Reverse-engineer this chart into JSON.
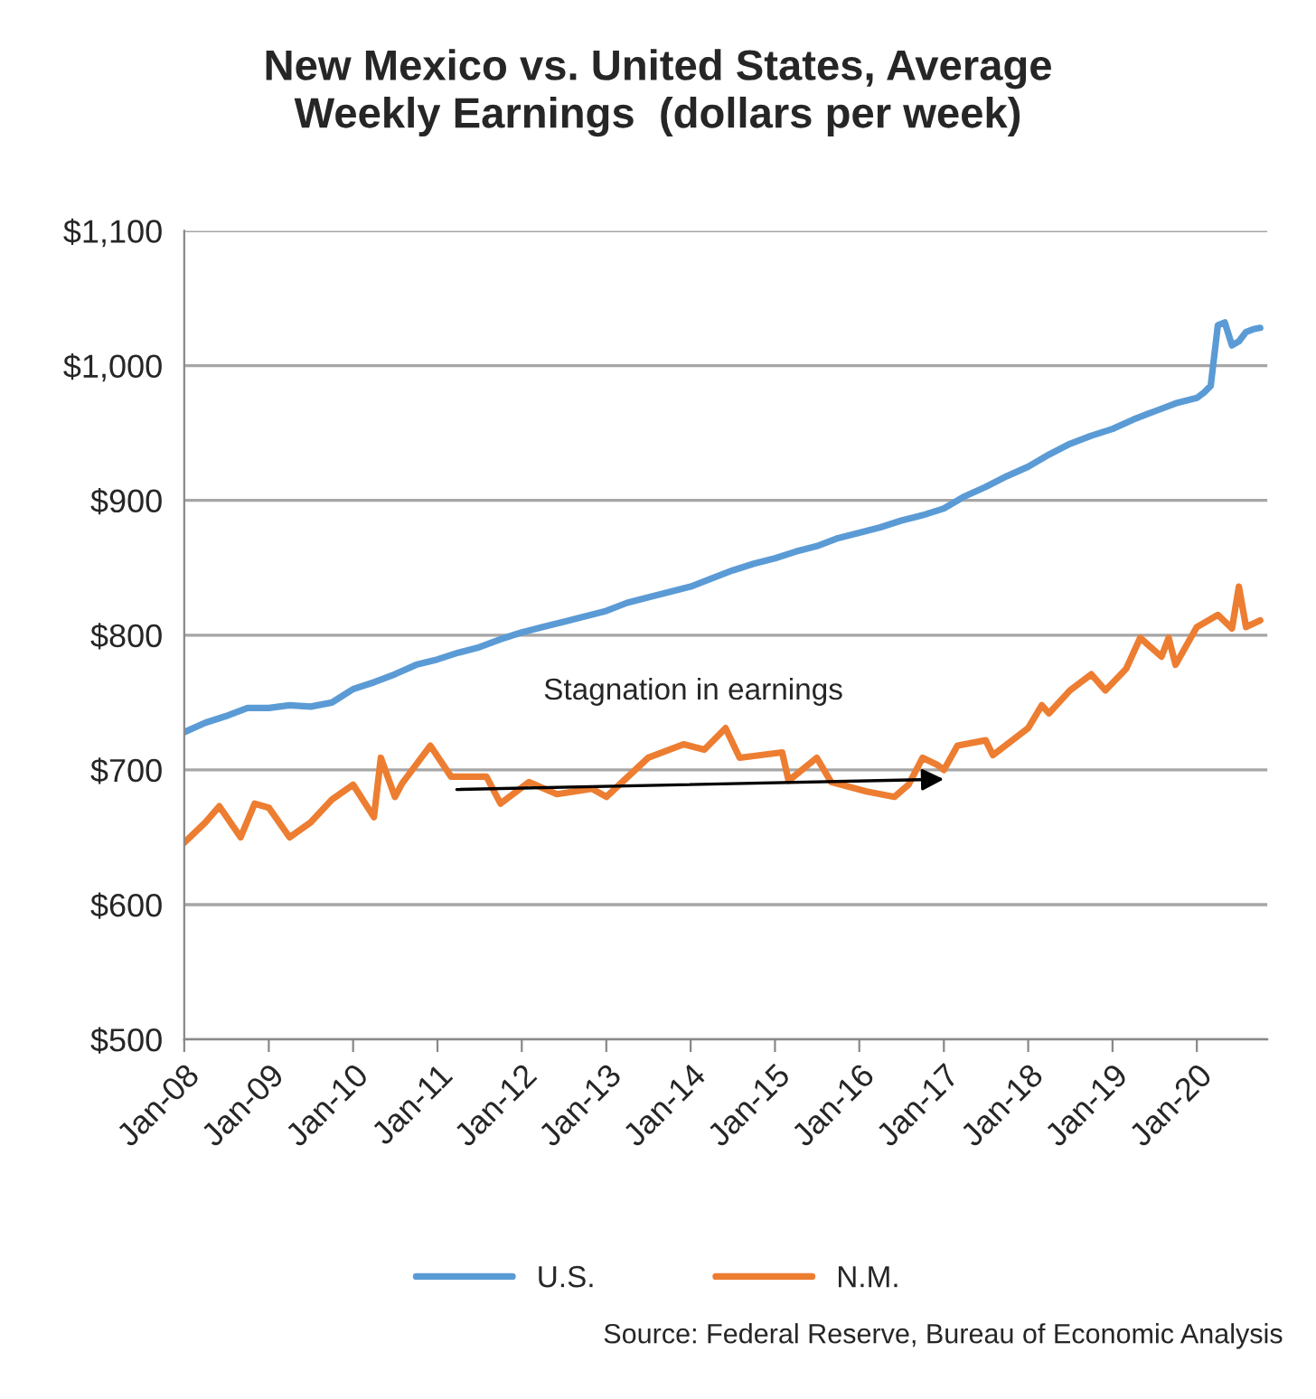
{
  "chart_data": {
    "type": "line",
    "title": "New Mexico vs. United States, Average\nWeekly Earnings  (dollars per week)",
    "series": [
      {
        "name": "U.S.",
        "color": "#5b9bd5",
        "x": [
          "2008-01",
          "2008-04",
          "2008-07",
          "2008-10",
          "2009-01",
          "2009-04",
          "2009-07",
          "2009-10",
          "2010-01",
          "2010-04",
          "2010-07",
          "2010-10",
          "2011-01",
          "2011-04",
          "2011-07",
          "2011-10",
          "2012-01",
          "2012-04",
          "2012-07",
          "2012-10",
          "2013-01",
          "2013-04",
          "2013-07",
          "2013-10",
          "2014-01",
          "2014-04",
          "2014-07",
          "2014-10",
          "2015-01",
          "2015-04",
          "2015-07",
          "2015-10",
          "2016-01",
          "2016-04",
          "2016-07",
          "2016-10",
          "2017-01",
          "2017-04",
          "2017-07",
          "2017-10",
          "2018-01",
          "2018-04",
          "2018-07",
          "2018-10",
          "2019-01",
          "2019-04",
          "2019-07",
          "2019-10",
          "2020-01",
          "2020-02",
          "2020-03",
          "2020-04",
          "2020-05",
          "2020-06",
          "2020-07",
          "2020-08",
          "2020-09",
          "2020-10"
        ],
        "values": [
          728,
          735,
          740,
          746,
          746,
          748,
          747,
          750,
          760,
          765,
          771,
          778,
          782,
          787,
          791,
          797,
          802,
          806,
          810,
          814,
          818,
          824,
          828,
          832,
          836,
          842,
          848,
          853,
          857,
          862,
          866,
          872,
          876,
          880,
          885,
          889,
          894,
          903,
          910,
          918,
          925,
          934,
          942,
          948,
          953,
          960,
          966,
          972,
          976,
          980,
          985,
          1030,
          1032,
          1015,
          1018,
          1025,
          1027,
          1028
        ]
      },
      {
        "name": "N.M.",
        "color": "#ed7d31",
        "x": [
          "2008-01",
          "2008-04",
          "2008-06",
          "2008-09",
          "2008-11",
          "2009-01",
          "2009-04",
          "2009-07",
          "2009-10",
          "2010-01",
          "2010-04",
          "2010-05",
          "2010-07",
          "2010-08",
          "2010-12",
          "2011-03",
          "2011-08",
          "2011-10",
          "2012-02",
          "2012-06",
          "2012-11",
          "2013-01",
          "2013-07",
          "2013-12",
          "2014-03",
          "2014-06",
          "2014-08",
          "2015-02",
          "2015-03",
          "2015-07",
          "2015-09",
          "2016-02",
          "2016-06",
          "2016-08",
          "2016-10",
          "2016-12",
          "2017-01",
          "2017-03",
          "2017-07",
          "2017-08",
          "2018-01",
          "2018-03",
          "2018-04",
          "2018-07",
          "2018-10",
          "2018-12",
          "2019-03",
          "2019-05",
          "2019-08",
          "2019-09",
          "2019-10",
          "2020-01",
          "2020-04",
          "2020-06",
          "2020-07",
          "2020-08",
          "2020-10"
        ],
        "values": [
          646,
          661,
          673,
          650,
          675,
          672,
          650,
          661,
          678,
          689,
          665,
          709,
          680,
          690,
          718,
          695,
          695,
          675,
          691,
          682,
          686,
          680,
          709,
          719,
          715,
          731,
          709,
          713,
          692,
          709,
          691,
          684,
          680,
          689,
          709,
          704,
          700,
          718,
          722,
          711,
          731,
          748,
          742,
          759,
          771,
          759,
          775,
          798,
          784,
          798,
          778,
          806,
          815,
          805,
          836,
          806,
          811
        ]
      }
    ],
    "xlim": [
      "2008-01",
      "2020-11"
    ],
    "xticks": [
      {
        "value": "2008-01",
        "label": "Jan-08"
      },
      {
        "value": "2009-01",
        "label": "Jan-09"
      },
      {
        "value": "2010-01",
        "label": "Jan-10"
      },
      {
        "value": "2011-01",
        "label": "Jan-11"
      },
      {
        "value": "2012-01",
        "label": "Jan-12"
      },
      {
        "value": "2013-01",
        "label": "Jan-13"
      },
      {
        "value": "2014-01",
        "label": "Jan-14"
      },
      {
        "value": "2015-01",
        "label": "Jan-15"
      },
      {
        "value": "2016-01",
        "label": "Jan-16"
      },
      {
        "value": "2017-01",
        "label": "Jan-17"
      },
      {
        "value": "2018-01",
        "label": "Jan-18"
      },
      {
        "value": "2019-01",
        "label": "Jan-19"
      },
      {
        "value": "2020-01",
        "label": "Jan-20"
      }
    ],
    "ylim": [
      500,
      1100
    ],
    "yticks": [
      {
        "value": 500,
        "label": "$500"
      },
      {
        "value": 600,
        "label": "$600"
      },
      {
        "value": 700,
        "label": "$700"
      },
      {
        "value": 800,
        "label": "$800"
      },
      {
        "value": 900,
        "label": "$900"
      },
      {
        "value": 1000,
        "label": "$1,000"
      },
      {
        "value": 1100,
        "label": "$1,100"
      }
    ],
    "grid": "y",
    "legend": "bottom",
    "marker": "none",
    "line_style": "solid",
    "annotations": [
      "Stagnation in earnings",
      "Source: Federal Reserve, Bureau of Economic Analysis"
    ]
  }
}
